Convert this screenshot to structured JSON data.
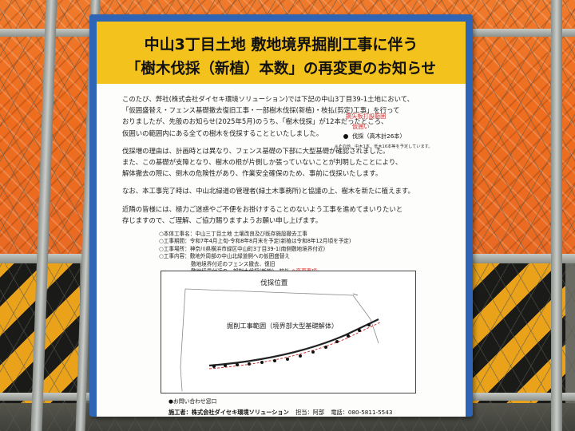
{
  "sign": {
    "title_line1": "中山3丁目土地 敷地境界掘削工事に伴う",
    "title_line2": "「樹木伐採（新植）本数」の再変更のお知らせ",
    "paragraphs": [
      [
        "このたび、弊社(株式会社ダイセキ環境ソリューション)では下記の中山3丁目39-1土地において、",
        "「仮囲盛替え・フェンス基礎撤去復旧工事・一部樹木伐採(新植)・枝払(剪定)工事」を行って",
        "おりましたが、先般のお知らせ(2025年5月)のうち、「樹木伐採」が12本だったところ、",
        "仮囲いの範囲内にある全ての樹木を伐採することといたしました。"
      ],
      [
        "伐採増の理由は、計画時とは異なり、フェンス基礎の下部に大型基礎が確認されました。",
        "また、この基礎が支障となり、樹木の根が片側しか張っていないことが判明したことにより、",
        "解体撤去の際に、倒木の危険性があり、作業安全確保のため、事前に伐採いたします。"
      ],
      [
        "なお、本工事完了時は、中山北緑道の管理者(緑土木事務所)と協議の上、樹木を新たに植えます。"
      ],
      [
        "近隣の皆様には、極力ご迷惑やご不便をお掛けすることのないよう工事を進めてまいりたいと",
        "存じますので、ご理解、ご協力賜りますようお願い申し上げます。"
      ]
    ],
    "details": {
      "name": "○本体工事名：中山三丁目土地 土壌改良及び既存施設撤去工事",
      "period": "○工事期間：令和7年4月上旬-令和8年8月末を予定(新植は令和8年12月頃を予定)",
      "location": "○工事場所：神奈川県横浜市緑区中山町3丁目39-1(南側敷地境界付近)",
      "content_head": "○工事内容：敷地外周部の中山北緑道側への仮囲盛替え",
      "content_2": "敷地境界付近のフェンス撤去、復旧",
      "content_3": "敷地境界付近の一部樹木伐採(新植)・枝払",
      "content_change": "※変更事項"
    },
    "map": {
      "label_felling_area": "伐採位置",
      "label_excavation": "掘削工事範囲（境界部大型基礎解体）",
      "legend_sheet_pile": "鋼矢板打設範囲",
      "legend_hoarding": "仮囲い",
      "legend_felling": "伐採（高木計26本）",
      "note": "※その他、中木1本、低木16本等を予定しています。"
    },
    "footer": {
      "inquiry": "●お問い合わせ窓口",
      "contractor": "施工者：株式会社ダイセキ環境ソリューション",
      "person": "担当：阿部",
      "phone": "電話：080-5811-5543"
    }
  },
  "colors": {
    "frame": "#2e66b5",
    "banner": "#f4c21d",
    "netting": "#ee6d1f",
    "hazard_black": "#1a1a18",
    "hazard_yellow": "#e9a21a",
    "red_text": "#d22222"
  }
}
